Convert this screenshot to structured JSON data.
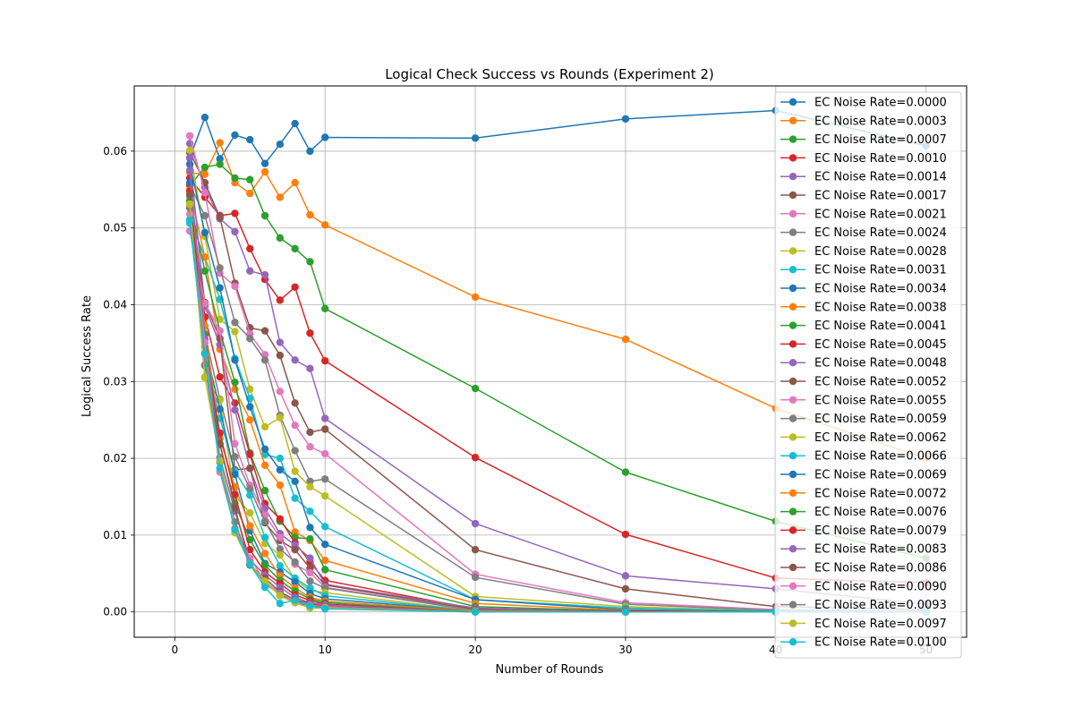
{
  "chart_data": {
    "type": "line",
    "title": "Logical Check Success vs Rounds (Experiment 2)",
    "xlabel": "Number of Rounds",
    "ylabel": "Logical Success Rate",
    "xlim": [
      -2.7,
      52.7
    ],
    "ylim": [
      -0.0033,
      0.0685
    ],
    "xticks": [
      0,
      10,
      20,
      30,
      40,
      50
    ],
    "yticks": [
      0.0,
      0.01,
      0.02,
      0.03,
      0.04,
      0.05,
      0.06
    ],
    "grid": true,
    "legend_position": "upper right",
    "x": [
      1,
      2,
      3,
      4,
      5,
      6,
      7,
      8,
      9,
      10,
      20,
      30,
      40,
      50
    ],
    "series": [
      {
        "name": "EC Noise Rate=0.0000",
        "color": "#1f77b4",
        "values": [
          0.0591,
          0.0644,
          0.059,
          0.0621,
          0.0615,
          0.0584,
          0.0609,
          0.0636,
          0.06,
          0.0618,
          0.0617,
          0.0642,
          0.0653,
          0.0607
        ]
      },
      {
        "name": "EC Noise Rate=0.0003",
        "color": "#ff7f0e",
        "values": [
          0.0572,
          0.057,
          0.0611,
          0.0559,
          0.0545,
          0.0573,
          0.054,
          0.0559,
          0.0517,
          0.0504,
          0.041,
          0.0355,
          0.0265,
          0.02
        ]
      },
      {
        "name": "EC Noise Rate=0.0007",
        "color": "#2ca02c",
        "values": [
          0.0555,
          0.0579,
          0.0583,
          0.0565,
          0.0563,
          0.0516,
          0.0487,
          0.0473,
          0.0456,
          0.0395,
          0.0291,
          0.0182,
          0.0118,
          0.007
        ]
      },
      {
        "name": "EC Noise Rate=0.0010",
        "color": "#d62728",
        "values": [
          0.0565,
          0.054,
          0.0516,
          0.0519,
          0.0473,
          0.0433,
          0.0406,
          0.0423,
          0.0363,
          0.0327,
          0.0201,
          0.0101,
          0.0044,
          0.0038
        ]
      },
      {
        "name": "EC Noise Rate=0.0014",
        "color": "#9467bd",
        "values": [
          0.061,
          0.0553,
          0.0512,
          0.0495,
          0.0444,
          0.0439,
          0.0351,
          0.0328,
          0.0317,
          0.0252,
          0.0115,
          0.0047,
          0.003,
          0.001
        ]
      },
      {
        "name": "EC Noise Rate=0.0017",
        "color": "#8c564b",
        "values": [
          0.0598,
          0.0559,
          0.0514,
          0.0428,
          0.037,
          0.0366,
          0.0334,
          0.0272,
          0.0234,
          0.0238,
          0.0081,
          0.003,
          0.0007,
          0.0003
        ]
      },
      {
        "name": "EC Noise Rate=0.0021",
        "color": "#e377c2",
        "values": [
          0.062,
          0.0546,
          0.0441,
          0.0424,
          0.0362,
          0.0335,
          0.0287,
          0.0243,
          0.0215,
          0.0206,
          0.0049,
          0.0012,
          0.0003,
          0.0001
        ]
      },
      {
        "name": "EC Noise Rate=0.0024",
        "color": "#7f7f7f",
        "values": [
          0.0556,
          0.0516,
          0.0448,
          0.0377,
          0.0356,
          0.0328,
          0.0256,
          0.021,
          0.017,
          0.0173,
          0.0045,
          0.001,
          0.0002,
          0.0
        ]
      },
      {
        "name": "EC Noise Rate=0.0028",
        "color": "#bcbd22",
        "values": [
          0.0601,
          0.0489,
          0.0381,
          0.0365,
          0.029,
          0.0241,
          0.0253,
          0.0183,
          0.0163,
          0.0151,
          0.002,
          0.0007,
          0.0001,
          0.0
        ]
      },
      {
        "name": "EC Noise Rate=0.0031",
        "color": "#17becf",
        "values": [
          0.0511,
          0.0462,
          0.0407,
          0.033,
          0.0278,
          0.0205,
          0.02,
          0.0148,
          0.0131,
          0.0111,
          0.0016,
          0.0005,
          0.0001,
          0.0
        ]
      },
      {
        "name": "EC Noise Rate=0.0034",
        "color": "#1f77b4",
        "values": [
          0.0583,
          0.0494,
          0.0422,
          0.0328,
          0.0267,
          0.0212,
          0.0185,
          0.017,
          0.011,
          0.0088,
          0.0016,
          0.0003,
          0.0,
          0.0
        ]
      },
      {
        "name": "EC Noise Rate=0.0038",
        "color": "#ff7f0e",
        "values": [
          0.055,
          0.0462,
          0.0342,
          0.029,
          0.025,
          0.0191,
          0.0165,
          0.0104,
          0.0093,
          0.0067,
          0.0011,
          0.0002,
          0.0,
          0.0
        ]
      },
      {
        "name": "EC Noise Rate=0.0041",
        "color": "#2ca02c",
        "values": [
          0.0535,
          0.0444,
          0.0366,
          0.0299,
          0.0207,
          0.0158,
          0.0118,
          0.0097,
          0.0095,
          0.0055,
          0.0007,
          0.0001,
          0.0,
          0.0
        ]
      },
      {
        "name": "EC Noise Rate=0.0045",
        "color": "#d62728",
        "values": [
          0.0557,
          0.0384,
          0.0306,
          0.0272,
          0.0205,
          0.0141,
          0.0121,
          0.009,
          0.0065,
          0.0041,
          0.0004,
          0.0001,
          0.0,
          0.0
        ]
      },
      {
        "name": "EC Noise Rate=0.0048",
        "color": "#9467bd",
        "values": [
          0.0592,
          0.0398,
          0.0348,
          0.0263,
          0.0187,
          0.0135,
          0.0102,
          0.0087,
          0.007,
          0.0036,
          0.0005,
          0.0,
          0.0,
          0.0
        ]
      },
      {
        "name": "EC Noise Rate=0.0052",
        "color": "#8c564b",
        "values": [
          0.0528,
          0.0403,
          0.0356,
          0.0185,
          0.0187,
          0.0116,
          0.0093,
          0.0081,
          0.0057,
          0.0035,
          0.0003,
          0.0,
          0.0,
          0.0
        ]
      },
      {
        "name": "EC Noise Rate=0.0055",
        "color": "#e377c2",
        "values": [
          0.0496,
          0.0402,
          0.0366,
          0.0219,
          0.0165,
          0.0126,
          0.0097,
          0.0062,
          0.0051,
          0.0032,
          0.0002,
          0.0,
          0.0,
          0.0
        ]
      },
      {
        "name": "EC Noise Rate=0.0059",
        "color": "#7f7f7f",
        "values": [
          0.0541,
          0.0362,
          0.0277,
          0.0202,
          0.016,
          0.0118,
          0.0082,
          0.0065,
          0.004,
          0.0031,
          0.0002,
          0.0,
          0.0,
          0.0
        ]
      },
      {
        "name": "EC Noise Rate=0.0062",
        "color": "#bcbd22",
        "values": [
          0.0532,
          0.0305,
          0.0276,
          0.0151,
          0.0129,
          0.0089,
          0.0074,
          0.0042,
          0.0028,
          0.0025,
          0.0001,
          0.0,
          0.0,
          0.0
        ]
      },
      {
        "name": "EC Noise Rate=0.0066",
        "color": "#17becf",
        "values": [
          0.0506,
          0.0336,
          0.0252,
          0.0183,
          0.0152,
          0.0097,
          0.006,
          0.0044,
          0.0031,
          0.0021,
          0.0001,
          0.0,
          0.0,
          0.0
        ]
      },
      {
        "name": "EC Noise Rate=0.0069",
        "color": "#1f77b4",
        "values": [
          0.0559,
          0.0346,
          0.0264,
          0.0179,
          0.0106,
          0.0063,
          0.0052,
          0.0039,
          0.0024,
          0.0017,
          0.0001,
          0.0,
          0.0,
          0.0
        ]
      },
      {
        "name": "EC Noise Rate=0.0072",
        "color": "#ff7f0e",
        "values": [
          0.0549,
          0.0372,
          0.0226,
          0.0163,
          0.0112,
          0.0076,
          0.0047,
          0.0031,
          0.0019,
          0.0014,
          0.0001,
          0.0,
          0.0,
          0.0
        ]
      },
      {
        "name": "EC Noise Rate=0.0076",
        "color": "#2ca02c",
        "values": [
          0.0536,
          0.0361,
          0.0218,
          0.0141,
          0.0094,
          0.0061,
          0.0041,
          0.0027,
          0.0017,
          0.0012,
          0.0,
          0.0,
          0.0,
          0.0
        ]
      },
      {
        "name": "EC Noise Rate=0.0079",
        "color": "#d62728",
        "values": [
          0.0548,
          0.0337,
          0.0233,
          0.0153,
          0.0081,
          0.0052,
          0.0037,
          0.0022,
          0.0015,
          0.001,
          0.0,
          0.0,
          0.0,
          0.0
        ]
      },
      {
        "name": "EC Noise Rate=0.0083",
        "color": "#9467bd",
        "values": [
          0.0575,
          0.0355,
          0.0201,
          0.0131,
          0.0068,
          0.0048,
          0.0032,
          0.0019,
          0.0012,
          0.0009,
          0.0,
          0.0,
          0.0,
          0.0
        ]
      },
      {
        "name": "EC Noise Rate=0.0086",
        "color": "#8c564b",
        "values": [
          0.0544,
          0.0321,
          0.0219,
          0.0136,
          0.0061,
          0.0044,
          0.0026,
          0.0016,
          0.0011,
          0.0007,
          0.0,
          0.0,
          0.0,
          0.0
        ]
      },
      {
        "name": "EC Noise Rate=0.0090",
        "color": "#e377c2",
        "values": [
          0.0518,
          0.0351,
          0.0182,
          0.0109,
          0.007,
          0.004,
          0.0024,
          0.0014,
          0.0009,
          0.0006,
          0.0,
          0.0,
          0.0,
          0.0
        ]
      },
      {
        "name": "EC Noise Rate=0.0093",
        "color": "#7f7f7f",
        "values": [
          0.0526,
          0.0322,
          0.0195,
          0.0117,
          0.0064,
          0.0037,
          0.0023,
          0.0012,
          0.0008,
          0.0005,
          0.0,
          0.0,
          0.0,
          0.0
        ]
      },
      {
        "name": "EC Noise Rate=0.0097",
        "color": "#bcbd22",
        "values": [
          0.0531,
          0.0306,
          0.0197,
          0.0103,
          0.0063,
          0.004,
          0.0021,
          0.0012,
          0.0005,
          0.0005,
          0.0,
          0.0,
          0.0,
          0.0
        ]
      },
      {
        "name": "EC Noise Rate=0.0100",
        "color": "#17becf",
        "values": [
          0.051,
          0.0336,
          0.0187,
          0.0107,
          0.0062,
          0.0032,
          0.0011,
          0.0015,
          0.0008,
          0.0004,
          0.0,
          0.0,
          0.0,
          0.0
        ]
      }
    ]
  }
}
